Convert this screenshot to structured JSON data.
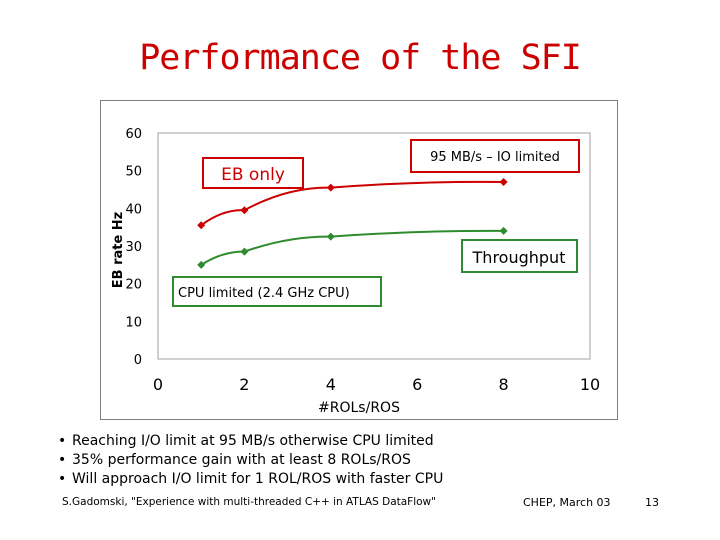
{
  "slide": {
    "title": "Performance of the SFI",
    "bullets": [
      "Reaching I/O limit at 95 MB/s otherwise CPU limited",
      "35% performance gain with at least 8 ROLs/ROS",
      "Will approach I/O limit for 1 ROL/ROS with faster CPU"
    ],
    "footer": {
      "citation": "S.Gadomski, \"Experience with multi-threaded C++ in ATLAS DataFlow\"",
      "event": "CHEP, March 03",
      "page": "13"
    }
  },
  "chart_data": {
    "type": "line",
    "title": "",
    "xlabel": "#ROLs/ROS",
    "ylabel": "EB rate Hz",
    "xlim": [
      0,
      10
    ],
    "ylim": [
      0,
      60
    ],
    "x_ticks": [
      "0",
      "2",
      "4",
      "6",
      "8",
      "10"
    ],
    "y_ticks": [
      "0",
      "10",
      "20",
      "30",
      "40",
      "50",
      "60"
    ],
    "series": [
      {
        "name": "EB only",
        "color": "#cc0000",
        "x": [
          1,
          2,
          4,
          8
        ],
        "y": [
          35.5,
          39.5,
          45.5,
          47
        ]
      },
      {
        "name": "Throughput",
        "color": "#2e8b2e",
        "x": [
          1,
          2,
          4,
          8
        ],
        "y": [
          25,
          28.5,
          32.5,
          34
        ]
      }
    ],
    "annotations": {
      "eb_only": "EB only",
      "io_limited": "95 MB/s – IO limited",
      "throughput": "Throughput",
      "cpu_limited": "CPU limited (2.4 GHz CPU)"
    }
  }
}
